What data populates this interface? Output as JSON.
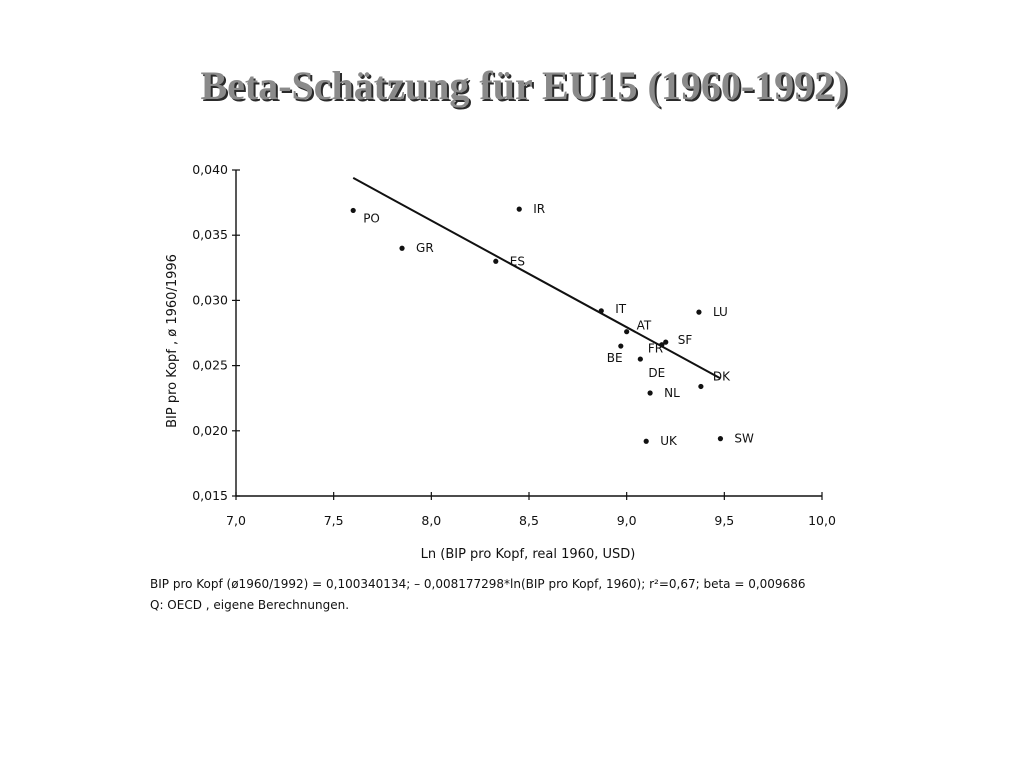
{
  "slide": {
    "title": "Beta-Schätzung für EU15 (1960-1992)"
  },
  "caption": {
    "formula": "BIP pro Kopf (ø1960/1992) = 0,100340134; – 0,008177298*ln(BIP pro Kopf, 1960); r²=0,67; beta = 0,009686",
    "source": "Q: OECD , eigene Berechnungen."
  },
  "chart_data": {
    "type": "scatter",
    "title": "",
    "xlabel": "Ln (BIP pro Kopf, real 1960, USD)",
    "ylabel": "BIP pro Kopf , ø 1960/1996",
    "xlim": [
      7.0,
      10.0
    ],
    "ylim": [
      0.015,
      0.04
    ],
    "x_ticks": [
      7.0,
      7.5,
      8.0,
      8.5,
      9.0,
      9.5,
      10.0
    ],
    "x_tick_labels": [
      "7,0",
      "7,5",
      "8,0",
      "8,5",
      "9,0",
      "9,5",
      "10,0"
    ],
    "y_ticks": [
      0.015,
      0.02,
      0.025,
      0.03,
      0.035,
      0.04
    ],
    "y_tick_labels": [
      "0,015",
      "0,020",
      "0,025",
      "0,030",
      "0,035",
      "0,040"
    ],
    "grid": false,
    "points": [
      {
        "label": "PO",
        "x": 7.6,
        "y": 0.0369
      },
      {
        "label": "GR",
        "x": 7.85,
        "y": 0.034
      },
      {
        "label": "ES",
        "x": 8.33,
        "y": 0.033
      },
      {
        "label": "IR",
        "x": 8.45,
        "y": 0.037
      },
      {
        "label": "IT",
        "x": 8.87,
        "y": 0.0292
      },
      {
        "label": "AT",
        "x": 9.0,
        "y": 0.0276
      },
      {
        "label": "BE",
        "x": 8.97,
        "y": 0.0265
      },
      {
        "label": "DE",
        "x": 9.07,
        "y": 0.0255
      },
      {
        "label": "FR",
        "x": 9.18,
        "y": 0.0266
      },
      {
        "label": "SF",
        "x": 9.2,
        "y": 0.0268
      },
      {
        "label": "LU",
        "x": 9.37,
        "y": 0.0291
      },
      {
        "label": "DK",
        "x": 9.38,
        "y": 0.0234
      },
      {
        "label": "NL",
        "x": 9.12,
        "y": 0.0229
      },
      {
        "label": "UK",
        "x": 9.1,
        "y": 0.0192
      },
      {
        "label": "SW",
        "x": 9.48,
        "y": 0.0194
      }
    ],
    "trendline": {
      "x_start": 7.6,
      "x_end": 9.48,
      "intercept": 0.100340134,
      "slope": -0.008177298
    }
  }
}
